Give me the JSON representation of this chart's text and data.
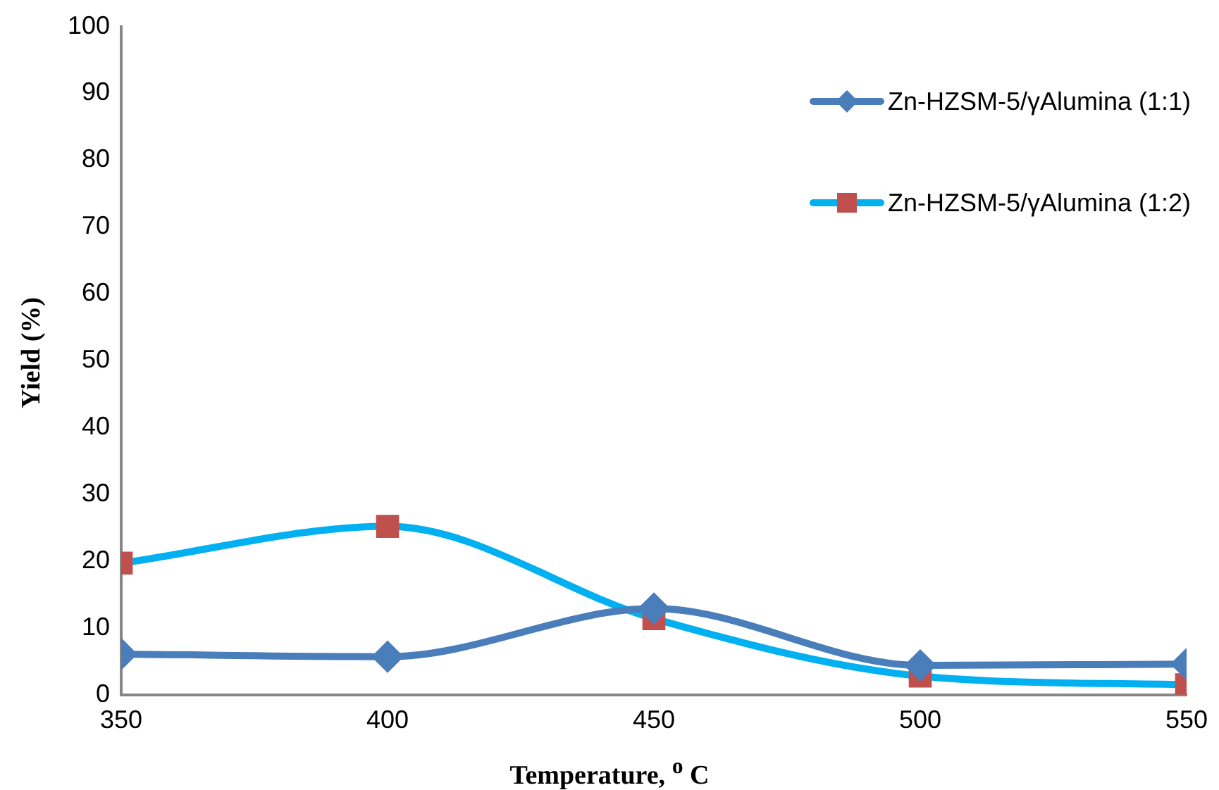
{
  "chart_data": {
    "type": "line",
    "xlabel": "Temperature, $^{o}$ C",
    "ylabel": "Yield (%)",
    "x": [
      350,
      400,
      450,
      500,
      550
    ],
    "xlim": [
      350,
      550
    ],
    "xticks": [
      350,
      400,
      450,
      500,
      550
    ],
    "ylim": [
      0,
      100
    ],
    "yticks": [
      0,
      10,
      20,
      30,
      40,
      50,
      60,
      70,
      80,
      90,
      100
    ],
    "grid": false,
    "legend": "top right",
    "series": [
      {
        "name": "Zn-HZSM-5/γAlumina (1:1)",
        "color": "#4a7ebb",
        "marker": "diamond",
        "values": [
          6.1,
          5.7,
          12.9,
          4.4,
          4.6
        ]
      },
      {
        "name": "Zn-HZSM-5/γAlumina (1:2)",
        "color": "#00b0f0",
        "colors": [
          "#c0504d",
          "#c0504d",
          "#c0504d",
          "#c0504d",
          "#c0504d"
        ],
        "marker": "square",
        "values": [
          19.7,
          25.2,
          11.4,
          2.8,
          1.5
        ]
      }
    ]
  }
}
